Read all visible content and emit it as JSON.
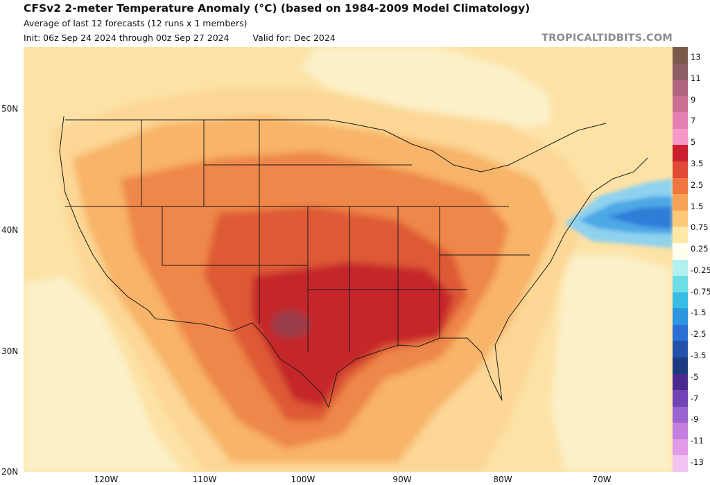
{
  "header": {
    "title": "CFSv2 2-meter Temperature Anomaly (°C) (based on 1984-2009 Model Climatology)",
    "subtitle": "Average of last 12 forecasts (12 runs x 1 members)",
    "init": "Init: 06z Sep 24 2024 through 00z Sep 27 2024",
    "valid": "Valid for: Dec 2024",
    "brand": "TROPICALTIDBITS.COM"
  },
  "axes": {
    "lat_labels": [
      "50N",
      "40N",
      "30N",
      "20N"
    ],
    "lon_labels": [
      "120W",
      "110W",
      "100W",
      "90W",
      "80W",
      "70W"
    ]
  },
  "colorbar": {
    "labels": [
      "13",
      "11",
      "9",
      "7",
      "5",
      "3.5",
      "2.5",
      "1.5",
      "0.75",
      "0.25",
      "-0.25",
      "-0.75",
      "-1.5",
      "-2.5",
      "-3.5",
      "-5",
      "-7",
      "-9",
      "-11",
      "-13"
    ],
    "colors": [
      "#7b5a4c",
      "#8c5f65",
      "#b0647f",
      "#cc6f95",
      "#e57fb2",
      "#f59ac6",
      "#c91f2e",
      "#e04b37",
      "#f0763f",
      "#f7a356",
      "#fcc978",
      "#fde8a8",
      "#fffff0",
      "#b3f0f0",
      "#6fdde5",
      "#37bde4",
      "#2c95df",
      "#2b6fd4",
      "#2452a8",
      "#1c3a7f",
      "#4a2a8f",
      "#7145b5",
      "#9a63d0",
      "#c27fe0",
      "#e29ae8",
      "#f3c2f0"
    ]
  },
  "map": {
    "colors": {
      "ocean_background": "#fce2a6",
      "anom_025": "#fcf0c8",
      "anom_075": "#fcd795",
      "anom_15": "#f8b468",
      "anom_25": "#ee8748",
      "anom_35": "#de5a34",
      "anom_5": "#c5282a",
      "anom_7": "#9a3e4a",
      "cool_1": "#8fd2ee",
      "cool_2": "#4ea8e6",
      "cool_3": "#2d7ed8",
      "border": "#1a1a1a"
    }
  }
}
